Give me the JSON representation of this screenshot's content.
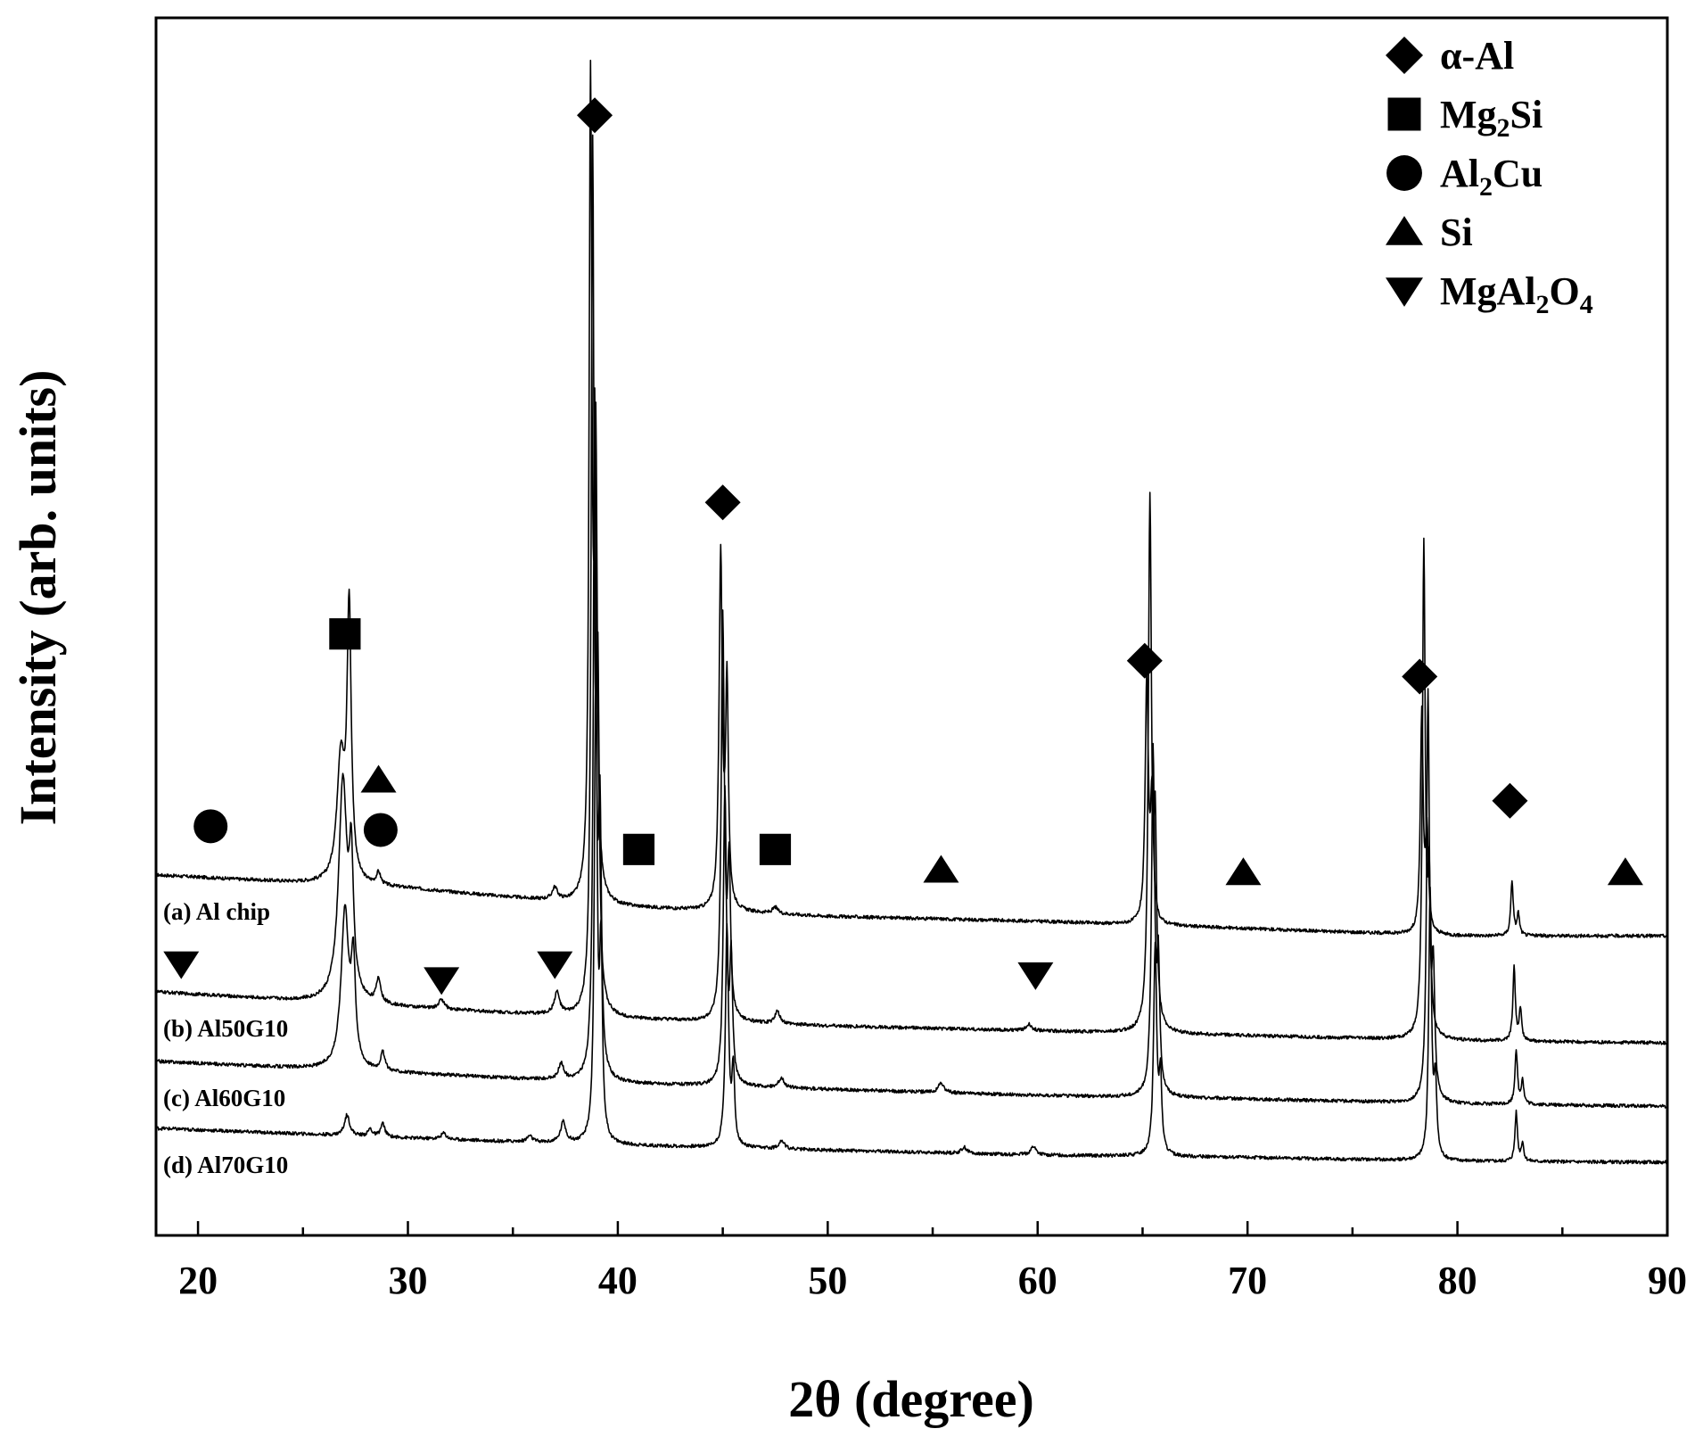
{
  "chart_data": {
    "type": "line",
    "title": "",
    "xlabel": "2θ (degree)",
    "ylabel": "Intensity (arb. units)",
    "xlim": [
      18,
      90
    ],
    "xticks": [
      20,
      30,
      40,
      50,
      60,
      70,
      80,
      90
    ],
    "ylim": [
      0,
      1
    ],
    "grid": false,
    "legend": {
      "placement": "top-right",
      "entries": [
        {
          "marker": "diamond",
          "parts": [
            {
              "t": "α-Al",
              "sub": false
            }
          ]
        },
        {
          "marker": "square",
          "parts": [
            {
              "t": "Mg",
              "sub": false
            },
            {
              "t": "2",
              "sub": true
            },
            {
              "t": "Si",
              "sub": false
            }
          ]
        },
        {
          "marker": "circle",
          "parts": [
            {
              "t": "Al",
              "sub": false
            },
            {
              "t": "2",
              "sub": true
            },
            {
              "t": "Cu",
              "sub": false
            }
          ]
        },
        {
          "marker": "triangle-up",
          "parts": [
            {
              "t": "Si",
              "sub": false
            }
          ]
        },
        {
          "marker": "triangle-down",
          "parts": [
            {
              "t": "MgAl",
              "sub": false
            },
            {
              "t": "2",
              "sub": true
            },
            {
              "t": "O",
              "sub": false
            },
            {
              "t": "4",
              "sub": true
            }
          ]
        }
      ]
    },
    "series": [
      {
        "name": "(a) Al chip",
        "label": "(a) Al chip",
        "baseline": [
          [
            18,
            0.296
          ],
          [
            30,
            0.285
          ],
          [
            40,
            0.27
          ],
          [
            50,
            0.262
          ],
          [
            60,
            0.258
          ],
          [
            70,
            0.252
          ],
          [
            80,
            0.246
          ],
          [
            90,
            0.246
          ]
        ],
        "peaks": [
          [
            26.8,
            0.1,
            0.22
          ],
          [
            27.2,
            0.22,
            0.12
          ],
          [
            28.6,
            0.01,
            0.12
          ],
          [
            37.0,
            0.01,
            0.15
          ],
          [
            38.7,
            0.66,
            0.08
          ],
          [
            38.95,
            0.35,
            0.08
          ],
          [
            44.9,
            0.29,
            0.09
          ],
          [
            45.2,
            0.18,
            0.08
          ],
          [
            47.5,
            0.005,
            0.15
          ],
          [
            65.2,
            0.2,
            0.09
          ],
          [
            65.45,
            0.1,
            0.08
          ],
          [
            78.3,
            0.18,
            0.08
          ],
          [
            78.55,
            0.08,
            0.08
          ],
          [
            82.6,
            0.045,
            0.07
          ],
          [
            82.9,
            0.018,
            0.07
          ]
        ]
      },
      {
        "name": "(b) Al50G10",
        "label": "(b) Al50G10",
        "baseline": [
          [
            18,
            0.2
          ],
          [
            30,
            0.187
          ],
          [
            40,
            0.178
          ],
          [
            50,
            0.172
          ],
          [
            60,
            0.168
          ],
          [
            70,
            0.164
          ],
          [
            80,
            0.16
          ],
          [
            90,
            0.158
          ]
        ],
        "peaks": [
          [
            26.9,
            0.18,
            0.24
          ],
          [
            27.3,
            0.1,
            0.12
          ],
          [
            28.6,
            0.02,
            0.12
          ],
          [
            31.6,
            0.008,
            0.15
          ],
          [
            37.1,
            0.018,
            0.15
          ],
          [
            38.8,
            0.7,
            0.08
          ],
          [
            39.05,
            0.25,
            0.08
          ],
          [
            45.0,
            0.33,
            0.09
          ],
          [
            45.3,
            0.12,
            0.08
          ],
          [
            47.6,
            0.01,
            0.15
          ],
          [
            59.6,
            0.005,
            0.15
          ],
          [
            65.35,
            0.43,
            0.09
          ],
          [
            65.6,
            0.15,
            0.08
          ],
          [
            78.4,
            0.4,
            0.08
          ],
          [
            78.65,
            0.12,
            0.08
          ],
          [
            82.7,
            0.06,
            0.07
          ],
          [
            83.0,
            0.025,
            0.07
          ]
        ]
      },
      {
        "name": "(c) Al60G10",
        "label": "(c) Al60G10",
        "baseline": [
          [
            18,
            0.143
          ],
          [
            30,
            0.133
          ],
          [
            40,
            0.125
          ],
          [
            50,
            0.12
          ],
          [
            60,
            0.115
          ],
          [
            70,
            0.112
          ],
          [
            80,
            0.108
          ],
          [
            90,
            0.106
          ]
        ],
        "peaks": [
          [
            27.0,
            0.13,
            0.22
          ],
          [
            27.4,
            0.08,
            0.12
          ],
          [
            28.8,
            0.015,
            0.12
          ],
          [
            37.3,
            0.013,
            0.15
          ],
          [
            38.9,
            0.55,
            0.08
          ],
          [
            39.15,
            0.2,
            0.08
          ],
          [
            45.1,
            0.24,
            0.09
          ],
          [
            45.4,
            0.1,
            0.08
          ],
          [
            47.8,
            0.008,
            0.15
          ],
          [
            55.4,
            0.008,
            0.15
          ],
          [
            65.5,
            0.28,
            0.09
          ],
          [
            65.75,
            0.1,
            0.08
          ],
          [
            78.6,
            0.33,
            0.08
          ],
          [
            78.85,
            0.1,
            0.08
          ],
          [
            82.8,
            0.045,
            0.07
          ],
          [
            83.1,
            0.02,
            0.07
          ]
        ]
      },
      {
        "name": "(d) Al70G10",
        "label": "(d) Al70G10",
        "baseline": [
          [
            18,
            0.088
          ],
          [
            30,
            0.08
          ],
          [
            40,
            0.074
          ],
          [
            50,
            0.07
          ],
          [
            60,
            0.066
          ],
          [
            70,
            0.064
          ],
          [
            80,
            0.061
          ],
          [
            90,
            0.06
          ]
        ],
        "peaks": [
          [
            27.1,
            0.017,
            0.15
          ],
          [
            28.2,
            0.006,
            0.12
          ],
          [
            28.8,
            0.011,
            0.12
          ],
          [
            31.7,
            0.005,
            0.15
          ],
          [
            35.8,
            0.005,
            0.15
          ],
          [
            37.4,
            0.017,
            0.15
          ],
          [
            38.95,
            0.38,
            0.08
          ],
          [
            39.2,
            0.15,
            0.08
          ],
          [
            45.2,
            0.18,
            0.09
          ],
          [
            45.5,
            0.06,
            0.08
          ],
          [
            47.8,
            0.007,
            0.15
          ],
          [
            56.5,
            0.005,
            0.15
          ],
          [
            59.8,
            0.007,
            0.15
          ],
          [
            65.6,
            0.17,
            0.09
          ],
          [
            65.85,
            0.06,
            0.08
          ],
          [
            78.7,
            0.22,
            0.08
          ],
          [
            78.95,
            0.06,
            0.08
          ],
          [
            82.8,
            0.04,
            0.07
          ],
          [
            83.1,
            0.015,
            0.07
          ]
        ]
      }
    ],
    "annotations": [
      {
        "marker": "diamond",
        "x": 38.9,
        "y": 0.92
      },
      {
        "marker": "diamond",
        "x": 45.0,
        "y": 0.602
      },
      {
        "marker": "diamond",
        "x": 65.1,
        "y": 0.472
      },
      {
        "marker": "diamond",
        "x": 78.2,
        "y": 0.459
      },
      {
        "marker": "diamond",
        "x": 82.5,
        "y": 0.357
      },
      {
        "marker": "square",
        "x": 27.0,
        "y": 0.494
      },
      {
        "marker": "square",
        "x": 41.0,
        "y": 0.317
      },
      {
        "marker": "square",
        "x": 47.5,
        "y": 0.317
      },
      {
        "marker": "circle",
        "x": 20.6,
        "y": 0.336
      },
      {
        "marker": "circle",
        "x": 28.7,
        "y": 0.333
      },
      {
        "marker": "triangle-up",
        "x": 28.6,
        "y": 0.374
      },
      {
        "marker": "triangle-up",
        "x": 55.4,
        "y": 0.3
      },
      {
        "marker": "triangle-up",
        "x": 69.8,
        "y": 0.298
      },
      {
        "marker": "triangle-up",
        "x": 88.0,
        "y": 0.298
      },
      {
        "marker": "triangle-down",
        "x": 19.2,
        "y": 0.223
      },
      {
        "marker": "triangle-down",
        "x": 31.6,
        "y": 0.21
      },
      {
        "marker": "triangle-down",
        "x": 37.0,
        "y": 0.223
      },
      {
        "marker": "triangle-down",
        "x": 59.9,
        "y": 0.214
      }
    ]
  }
}
